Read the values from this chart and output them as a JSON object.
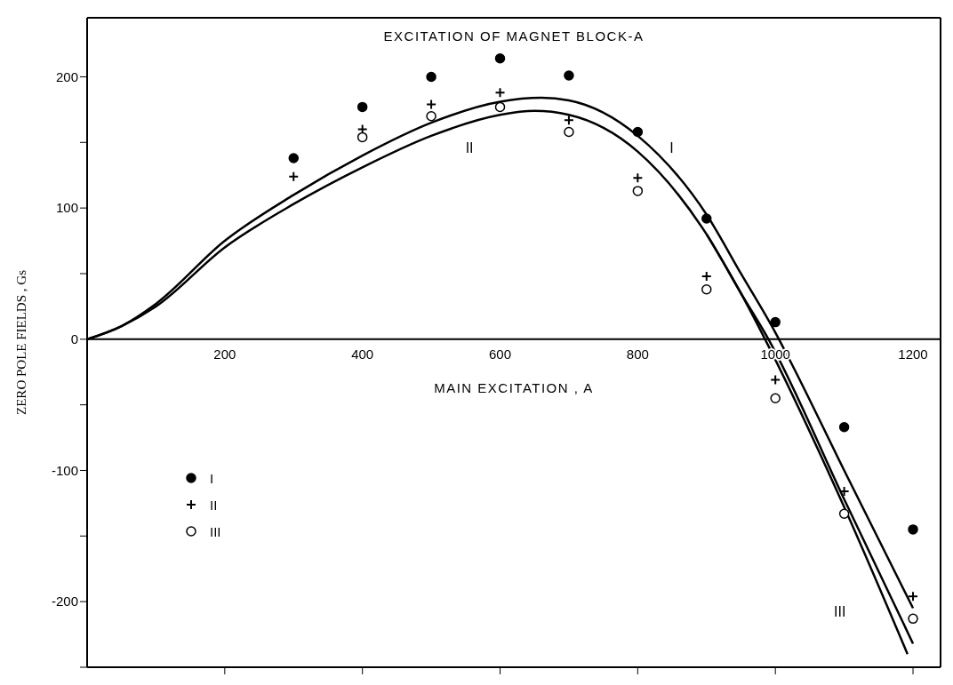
{
  "chart_data": {
    "type": "scatter",
    "title": "EXCITATION OF MAGNET BLOCK-A",
    "xlabel": "MAIN EXCITATION , A",
    "ylabel": "ZERO POLE FIELDS , Gs",
    "xlim": [
      0,
      1240
    ],
    "xticks": [
      200,
      400,
      600,
      800,
      1000,
      1200
    ],
    "ylim": [
      -250,
      245
    ],
    "yticks": [
      {
        "value": -250,
        "label": null
      },
      -200,
      {
        "value": -150,
        "label": null
      },
      -100,
      {
        "value": -50,
        "label": null
      },
      0,
      {
        "value": 50,
        "label": null
      },
      100,
      {
        "value": 150,
        "label": null
      },
      200
    ],
    "legend": "bottom left",
    "annotations": [
      "I",
      "II",
      "III"
    ],
    "series": [
      {
        "name": "I",
        "marker": "circle",
        "color": "#000000",
        "x": [
          300,
          400,
          500,
          600,
          700,
          800,
          900,
          1000,
          1100,
          1200
        ],
        "values": [
          138,
          177,
          200,
          214,
          201,
          158,
          92,
          13,
          -67,
          -145
        ]
      },
      {
        "name": "II",
        "marker": "cross",
        "color": "#000000",
        "x": [
          300,
          400,
          500,
          600,
          700,
          800,
          900,
          1000,
          1100,
          1200
        ],
        "values": [
          124,
          160,
          179,
          188,
          167,
          123,
          48,
          -31,
          -116,
          -196
        ]
      },
      {
        "name": "III",
        "marker": "circle",
        "color": "#ffffff",
        "x": [
          400,
          500,
          600,
          700,
          800,
          900,
          1000,
          1100,
          1200
        ],
        "values": [
          154,
          170,
          177,
          158,
          113,
          38,
          -45,
          -133,
          -213
        ]
      },
      {
        "type": "line",
        "marker": "none",
        "color": "#000000",
        "x": [
          0,
          50,
          100,
          200,
          300,
          400,
          500,
          600,
          660,
          700,
          800,
          900,
          950,
          1000,
          1020,
          1100,
          1200
        ],
        "values": [
          0,
          10,
          27,
          75,
          110,
          140,
          165,
          181,
          184,
          182,
          155,
          95,
          50,
          5,
          -15,
          -100,
          -205
        ]
      },
      {
        "type": "line",
        "marker": "none",
        "color": "#000000",
        "x": [
          0,
          50,
          100,
          200,
          300,
          400,
          500,
          600,
          650,
          700,
          800,
          900,
          950,
          990,
          1100,
          1200
        ],
        "values": [
          0,
          10,
          25,
          70,
          103,
          131,
          155,
          171,
          174,
          171,
          143,
          80,
          35,
          0,
          -122,
          -232
        ]
      },
      {
        "type": "line",
        "marker": "none",
        "color": "#000000",
        "x": [
          900,
          950,
          985,
          1100,
          1192
        ],
        "values": [
          80,
          35,
          0,
          -128,
          -240
        ]
      }
    ]
  }
}
